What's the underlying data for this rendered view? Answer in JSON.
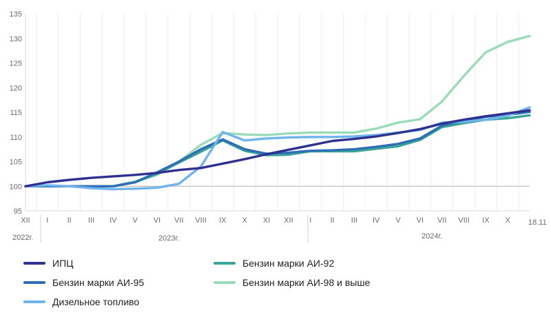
{
  "chart_data": {
    "type": "line",
    "x_labels": [
      "XII",
      "I",
      "II",
      "III",
      "IV",
      "V",
      "VI",
      "VII",
      "VIII",
      "IX",
      "X",
      "XI",
      "XII",
      "I",
      "II",
      "III",
      "IV",
      "V",
      "VI",
      "VII",
      "VIII",
      "IX",
      "X",
      "18.11"
    ],
    "years": [
      "2022г.",
      "2023г.",
      "2024г."
    ],
    "ylim": [
      95,
      135
    ],
    "yticks": [
      95,
      100,
      105,
      110,
      115,
      120,
      125,
      130,
      135
    ],
    "baseline": 100,
    "grid": "vertical",
    "legend_position": "bottom",
    "series": [
      {
        "name": "ИПЦ",
        "color": "#2e3190",
        "values": [
          100,
          100.8,
          101.3,
          101.7,
          102.0,
          102.3,
          102.7,
          103.3,
          103.7,
          104.6,
          105.5,
          106.5,
          107.4,
          108.3,
          109.2,
          109.6,
          110.1,
          110.8,
          111.6,
          112.7,
          113.5,
          114.2,
          114.8,
          115.4
        ]
      },
      {
        "name": "Бензин марки АИ-92",
        "color": "#3aa69a",
        "values": [
          100,
          100,
          100,
          100,
          100,
          100.8,
          102.5,
          104.8,
          107.0,
          109.3,
          107.2,
          106.3,
          106.4,
          107.1,
          107.1,
          107.1,
          107.6,
          108.1,
          109.4,
          112.0,
          112.8,
          113.5,
          113.8,
          114.4
        ]
      },
      {
        "name": "Бензин марки АИ-95",
        "color": "#2f6db5",
        "values": [
          100,
          100,
          100,
          100,
          100,
          100.8,
          102.8,
          105.0,
          107.5,
          109.5,
          107.5,
          106.6,
          106.8,
          107.2,
          107.3,
          107.5,
          108.0,
          108.6,
          109.7,
          112.3,
          113.3,
          114.1,
          114.5,
          115.1
        ]
      },
      {
        "name": "Бензин марки АИ-98 и  выше",
        "color": "#9adbb8",
        "values": [
          100,
          100,
          100,
          100,
          100,
          101.0,
          102.3,
          105.0,
          108.4,
          110.8,
          110.5,
          110.4,
          110.7,
          110.9,
          110.9,
          110.9,
          111.7,
          112.9,
          113.6,
          117.2,
          122.4,
          127.2,
          129.3,
          130.5
        ]
      },
      {
        "name": "Дизельное топливо",
        "color": "#6fb4ec",
        "values": [
          100,
          100.2,
          100,
          99.6,
          99.4,
          99.5,
          99.7,
          100.5,
          104.0,
          111.0,
          109.3,
          109.7,
          109.9,
          110.0,
          110.0,
          110.1,
          110.4,
          110.9,
          111.4,
          112.9,
          113.1,
          113.5,
          114.3,
          116.0
        ]
      }
    ]
  }
}
